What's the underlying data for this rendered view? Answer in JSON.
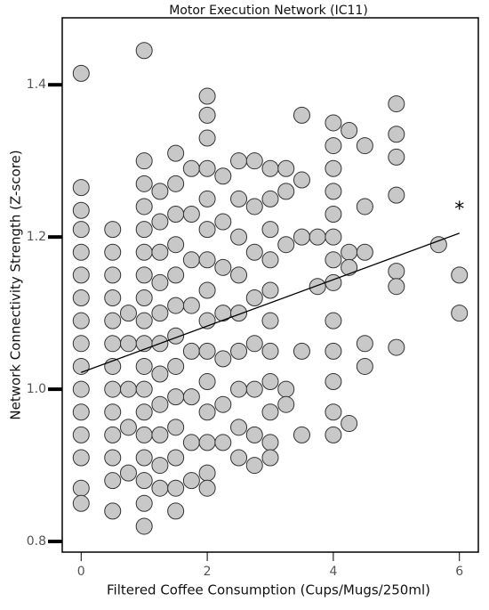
{
  "chart_data": {
    "type": "scatter",
    "title": "Motor Execution Network (IC11)",
    "x_label": "Filtered Coffee Consumption (Cups/Mugs/250ml)",
    "y_label": "Network Connectivity Strength (Z-score)",
    "annotation": "*",
    "color": "#c8c8c8",
    "xlim": [
      -0.3,
      6.3
    ],
    "ylim": [
      0.786,
      1.488
    ],
    "xticks": [
      0,
      2,
      4,
      6
    ],
    "yticks": [
      {
        "value": 0.8,
        "label": "0.8"
      },
      {
        "value": 1.0,
        "label": "1.0"
      },
      {
        "value": 1.2,
        "label": "1.2"
      },
      {
        "value": 1.4,
        "label": "1.4"
      }
    ],
    "x": [
      0,
      0,
      0,
      0,
      0,
      0,
      0,
      0,
      0,
      0,
      0,
      0,
      0,
      0,
      0,
      0,
      0.5,
      0.5,
      0.5,
      0.5,
      0.5,
      0.5,
      0.5,
      0.5,
      0.5,
      0.5,
      0.5,
      0.5,
      0.5,
      0.75,
      0.75,
      0.75,
      0.75,
      0.75,
      1,
      1,
      1,
      1,
      1,
      1,
      1,
      1,
      1,
      1,
      1,
      1,
      1,
      1,
      1,
      1,
      1,
      1,
      1.25,
      1.25,
      1.25,
      1.25,
      1.25,
      1.25,
      1.25,
      1.25,
      1.25,
      1.25,
      1.25,
      1.5,
      1.5,
      1.5,
      1.5,
      1.5,
      1.5,
      1.5,
      1.5,
      1.5,
      1.5,
      1.5,
      1.5,
      1.5,
      1.75,
      1.75,
      1.75,
      1.75,
      1.75,
      1.75,
      1.75,
      1.75,
      2,
      2,
      2,
      2,
      2,
      2,
      2,
      2,
      2,
      2,
      2,
      2,
      2,
      2,
      2,
      2.25,
      2.25,
      2.25,
      2.25,
      2.25,
      2.25,
      2.25,
      2.5,
      2.5,
      2.5,
      2.5,
      2.5,
      2.5,
      2.5,
      2.5,
      2.5,
      2.75,
      2.75,
      2.75,
      2.75,
      2.75,
      2.75,
      2.75,
      2.75,
      3,
      3,
      3,
      3,
      3,
      3,
      3,
      3,
      3,
      3,
      3,
      3.25,
      3.25,
      3.25,
      3.25,
      3.25,
      3.5,
      3.5,
      3.5,
      3.5,
      3.5,
      3.75,
      3.75,
      4,
      4,
      4,
      4,
      4,
      4,
      4,
      4,
      4,
      4,
      4,
      4,
      4,
      4.25,
      4.25,
      4.25,
      4.25,
      4.5,
      4.5,
      4.5,
      4.5,
      4.5,
      5,
      5,
      5,
      5,
      5,
      5,
      5,
      5.67,
      6,
      6
    ],
    "values": [
      1.415,
      1.265,
      1.235,
      1.21,
      1.18,
      1.15,
      1.12,
      1.09,
      1.06,
      1.03,
      1.0,
      0.97,
      0.94,
      0.91,
      0.87,
      0.85,
      1.21,
      1.18,
      1.15,
      1.12,
      1.09,
      1.06,
      1.03,
      1.0,
      0.97,
      0.94,
      0.91,
      0.88,
      0.84,
      1.1,
      1.06,
      1.0,
      0.95,
      0.89,
      1.445,
      1.3,
      1.27,
      1.24,
      1.21,
      1.18,
      1.15,
      1.12,
      1.09,
      1.06,
      1.03,
      1.0,
      0.97,
      0.94,
      0.91,
      0.88,
      0.85,
      0.82,
      1.26,
      1.22,
      1.18,
      1.14,
      1.1,
      1.06,
      1.02,
      0.98,
      0.94,
      0.9,
      0.87,
      1.31,
      1.27,
      1.23,
      1.19,
      1.15,
      1.11,
      1.07,
      1.03,
      0.99,
      0.95,
      0.91,
      0.87,
      0.84,
      1.29,
      1.23,
      1.17,
      1.11,
      1.05,
      0.99,
      0.93,
      0.88,
      1.385,
      1.36,
      1.33,
      1.29,
      1.25,
      1.21,
      1.17,
      1.13,
      1.09,
      1.05,
      1.01,
      0.97,
      0.93,
      0.89,
      0.87,
      1.28,
      1.22,
      1.16,
      1.1,
      1.04,
      0.98,
      0.93,
      1.3,
      1.25,
      1.2,
      1.15,
      1.1,
      1.05,
      1.0,
      0.95,
      0.91,
      1.3,
      1.24,
      1.18,
      1.12,
      1.06,
      1.0,
      0.94,
      0.9,
      1.29,
      1.25,
      1.21,
      1.17,
      1.13,
      1.09,
      1.05,
      1.01,
      0.97,
      0.93,
      0.91,
      1.29,
      1.26,
      1.19,
      1.0,
      0.98,
      1.36,
      1.275,
      1.2,
      1.05,
      0.94,
      1.2,
      1.135,
      1.35,
      1.32,
      1.29,
      1.26,
      1.23,
      1.2,
      1.17,
      1.14,
      1.09,
      1.05,
      1.01,
      0.97,
      0.94,
      1.34,
      1.18,
      1.16,
      0.955,
      1.32,
      1.24,
      1.18,
      1.06,
      1.03,
      1.375,
      1.335,
      1.305,
      1.255,
      1.155,
      1.135,
      1.055,
      1.19,
      1.15,
      1.1
    ],
    "trend_line": {
      "x": [
        0,
        6
      ],
      "values": [
        1.022,
        1.205
      ]
    }
  }
}
